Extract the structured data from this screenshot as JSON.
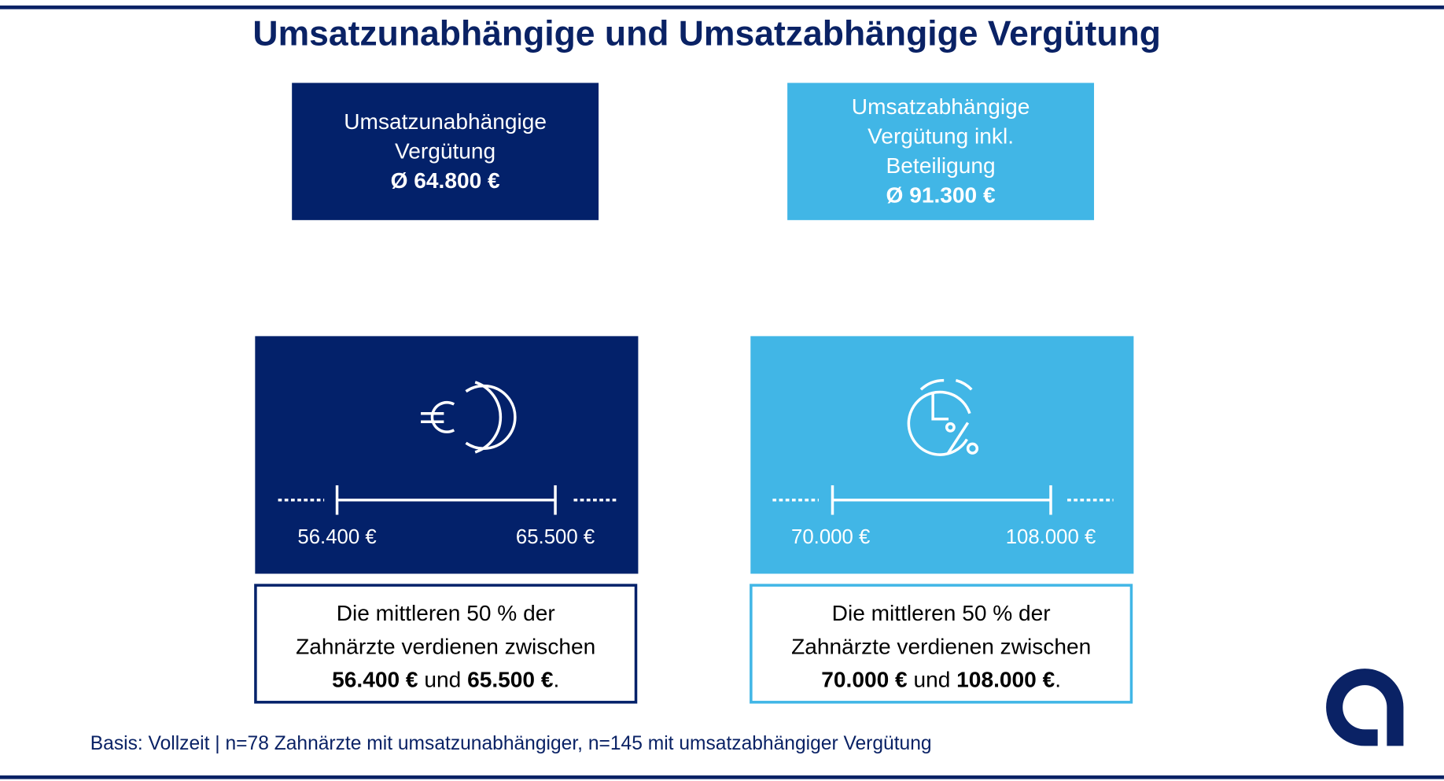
{
  "title": "Umsatzunabhängige und Umsatzabhängige Vergütung",
  "cards": [
    {
      "lines": [
        "Umsatzunabhängige",
        "Vergütung"
      ],
      "average": "Ø 64.800 €"
    },
    {
      "lines": [
        "Umsatzabhängige",
        "Vergütung inkl.",
        "Beteiligung"
      ],
      "average": "Ø 91.300 €"
    }
  ],
  "ranges": [
    {
      "low": "56.400 €",
      "high": "65.500 €",
      "description": {
        "lines": [
          "Die mittleren 50 % der",
          "Zahnärzte verdienen zwischen"
        ],
        "low": "56.400 €",
        "joiner": "und",
        "high": "65.500 €",
        "end": "."
      }
    },
    {
      "low": "70.000 €",
      "high": "108.000 €",
      "description": {
        "lines": [
          "Die mittleren 50 % der",
          "Zahnärzte verdienen zwischen"
        ],
        "low": "70.000 €",
        "joiner": "und",
        "high": "108.000 €",
        "end": "."
      }
    }
  ],
  "footnote": "Basis: Vollzeit | n=78 Zahnärzte mit umsatzunabhängiger, n=145 mit umsatzabhängiger Vergütung"
}
